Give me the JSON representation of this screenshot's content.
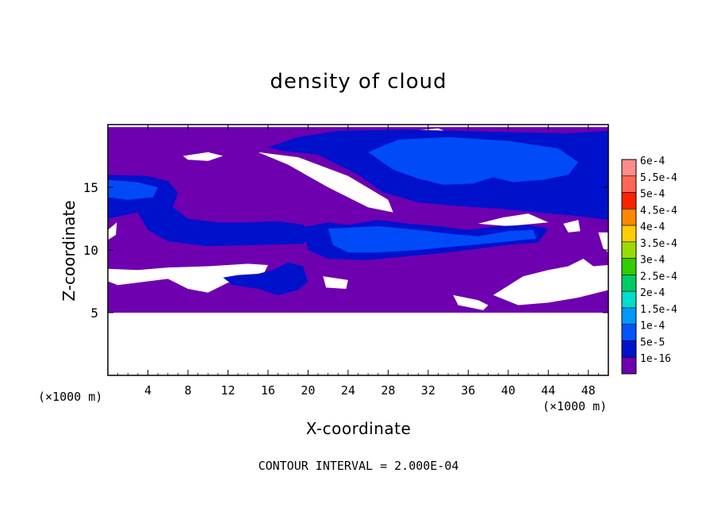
{
  "chart_data": {
    "type": "heatmap",
    "title": "density of cloud",
    "xlabel": "X-coordinate",
    "ylabel": "Z-coordinate",
    "x_unit": "(×1000 m)",
    "y_unit": "(×1000 m)",
    "xlim": [
      0,
      50
    ],
    "ylim": [
      0,
      20
    ],
    "x_ticks": [
      "4",
      "8",
      "12",
      "16",
      "20",
      "24",
      "28",
      "32",
      "36",
      "40",
      "44",
      "48"
    ],
    "y_ticks": [
      "5",
      "10",
      "15"
    ],
    "grid": false,
    "colorbar": {
      "placement": "right",
      "labels": [
        "6e-4",
        "5.5e-4",
        "5e-4",
        "4.5e-4",
        "4e-4",
        "3.5e-4",
        "3e-4",
        "2.5e-4",
        "2e-4",
        "1.5e-4",
        "1e-4",
        "5e-5",
        "1e-16"
      ],
      "colors": [
        "#ff8c8c",
        "#ff6655",
        "#ff2200",
        "#ff8800",
        "#ffcc00",
        "#99dd00",
        "#33cc00",
        "#00cc66",
        "#00ddcc",
        "#0099ff",
        "#0055ff",
        "#0011cc",
        "#6e00b0"
      ]
    },
    "annotation": "CONTOUR INTERVAL = 2.000E-04",
    "regions": [
      {
        "level": "1e-16",
        "x": [
          0,
          50
        ],
        "z": [
          5,
          19.8
        ],
        "note": "background cloud layer"
      },
      {
        "level": "5e-5",
        "x": [
          16,
          50
        ],
        "z": [
          12.5,
          19.5
        ],
        "note": "upper-right band"
      },
      {
        "level": "1e-4",
        "x": [
          26,
          46
        ],
        "z": [
          14,
          19
        ],
        "note": "upper-right core"
      },
      {
        "level": "5e-5",
        "x": [
          0,
          20
        ],
        "z": [
          11,
          16
        ],
        "note": "left band"
      },
      {
        "level": "1e-4",
        "x": [
          0,
          5
        ],
        "z": [
          13.5,
          15.5
        ],
        "note": "left core"
      },
      {
        "level": "5e-5",
        "x": [
          20,
          44
        ],
        "z": [
          9,
          12
        ],
        "note": "middle band"
      },
      {
        "level": "1e-4",
        "x": [
          23,
          43
        ],
        "z": [
          9.5,
          11.5
        ],
        "note": "middle core"
      },
      {
        "level": "5e-5",
        "x": [
          12,
          20
        ],
        "z": [
          6.5,
          8.5
        ],
        "note": "lower blob"
      }
    ]
  }
}
